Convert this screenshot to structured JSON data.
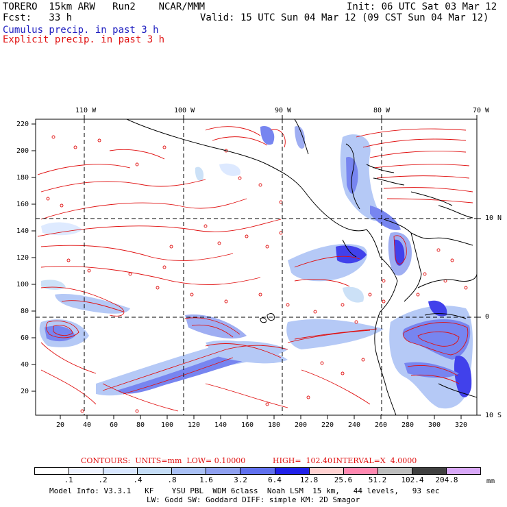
{
  "header": {
    "model": "TORERO  15km ARW   Run2    NCAR/MMM",
    "init": "Init: 06 UTC Sat 03 Mar 12",
    "fcst": "Fcst:   33 h",
    "valid": "Valid: 15 UTC Sun 04 Mar 12 (09 CST Sun 04 Mar 12)",
    "cumulus_label": "Cumulus precip. in past 3 h",
    "explicit_label": "Explicit precip. in past 3 h"
  },
  "axes": {
    "top_lon": [
      "110 W",
      "100 W",
      "90 W",
      "80 W",
      "70 W"
    ],
    "right_lat": [
      "10 N",
      "0",
      "10 S"
    ],
    "left_y": [
      "220",
      "200",
      "180",
      "160",
      "140",
      "120",
      "100",
      "80",
      "60",
      "40",
      "20"
    ],
    "bottom_x": [
      "20",
      "40",
      "60",
      "80",
      "100",
      "120",
      "140",
      "160",
      "180",
      "200",
      "220",
      "240",
      "260",
      "280",
      "300",
      "320"
    ]
  },
  "contours_info": {
    "contours": "CONTOURS:  UNITS=mm  LOW= 0.10000",
    "high": "HIGH=  102.40",
    "interval": "INTERVAL=X  4.0000"
  },
  "colorbar": {
    "colors": [
      "#ffffff",
      "#eef3ff",
      "#d8e6ff",
      "#c4dcf6",
      "#a9c0f5",
      "#8fa0f0",
      "#6070ee",
      "#2020e8",
      "#ffd0d0",
      "#ff88b0",
      "#bdbdbd",
      "#404040",
      "#d8a8f8"
    ],
    "labels": [
      ".1",
      ".2",
      ".4",
      ".8",
      "1.6",
      "3.2",
      "6.4",
      "12.8",
      "25.6",
      "51.2",
      "102.4",
      "204.8"
    ],
    "unit": "mm"
  },
  "footer": {
    "line1": "Model Info: V3.3.1   KF    YSU PBL  WDM 6class  Noah LSM  15 km,   44 levels,   93 sec",
    "line2": "LW: Godd SW: Goddard DIFF: simple KM: 2D Smagor"
  }
}
